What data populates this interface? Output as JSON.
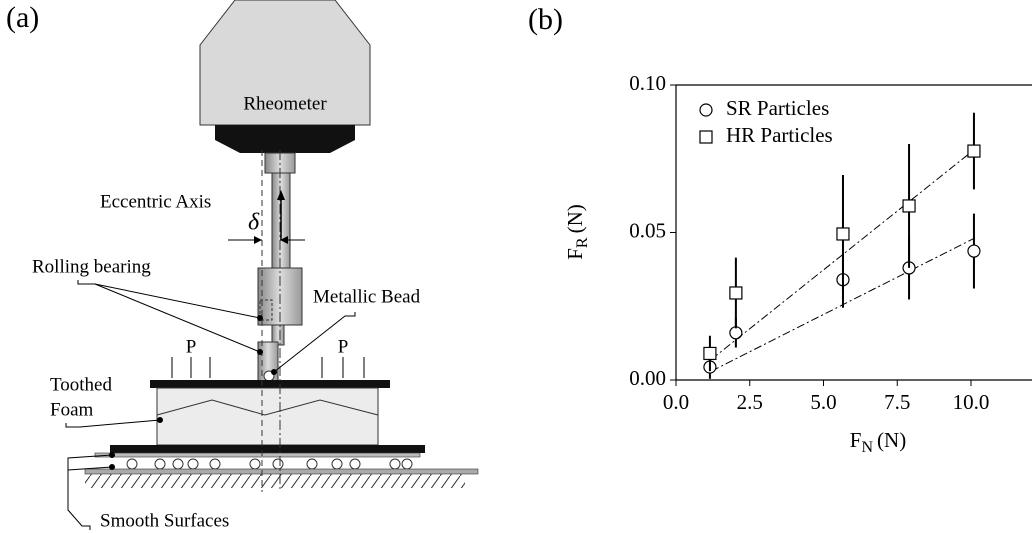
{
  "diagram": {
    "panel_label": "(a)",
    "instrument": "Rheometer",
    "axis_label": "Eccentric Axis",
    "offset_symbol": "δ",
    "bearing_label": "Rolling bearing",
    "bead_label": "Metallic Bead",
    "load_left": "P",
    "load_right": "P",
    "foam_label_1": "Toothed",
    "foam_label_2": "Foam",
    "surface_label": "Smooth Surfaces"
  },
  "chart_data": {
    "type": "scatter",
    "panel_label": "(b)",
    "xlabel": {
      "symbol": "F",
      "subscript": "N",
      "unit": "(N)"
    },
    "ylabel": {
      "symbol": "F",
      "subscript": "R",
      "unit": "(N)"
    },
    "xlim": [
      0,
      12
    ],
    "ylim": [
      0,
      0.1
    ],
    "xticks": [
      {
        "value": 0,
        "label": "0.0"
      },
      2.5,
      {
        "value": 5,
        "label": "5.0"
      },
      7.5,
      {
        "value": 10,
        "label": "10.0"
      }
    ],
    "yticks": [
      {
        "value": 0,
        "label": "0.00"
      },
      {
        "value": 0.05,
        "label": "0.05"
      },
      {
        "value": 0.1,
        "label": "0.10"
      }
    ],
    "legend": "upper left",
    "series": [
      {
        "name": "SR Particles",
        "marker": "circle",
        "color": "#000000",
        "x": [
          1.15,
          2.03,
          5.66,
          7.9,
          10.1
        ],
        "values": [
          0.0044,
          0.016,
          0.034,
          0.038,
          0.0437
        ],
        "errors": [
          0.004,
          0.005,
          0.0095,
          0.0107,
          0.0127
        ],
        "fit": {
          "x": [
            1.2,
            10.1
          ],
          "values": [
            0.003,
            0.048
          ]
        }
      },
      {
        "name": "HR Particles",
        "marker": "square",
        "color": "#000000",
        "x": [
          1.15,
          2.03,
          5.66,
          7.9,
          10.1
        ],
        "values": [
          0.009,
          0.0295,
          0.0495,
          0.059,
          0.0776
        ],
        "errors": [
          0.006,
          0.012,
          0.02,
          0.021,
          0.013
        ],
        "fit": {
          "x": [
            1.2,
            10.1
          ],
          "values": [
            0.007,
            0.078
          ]
        }
      }
    ]
  }
}
